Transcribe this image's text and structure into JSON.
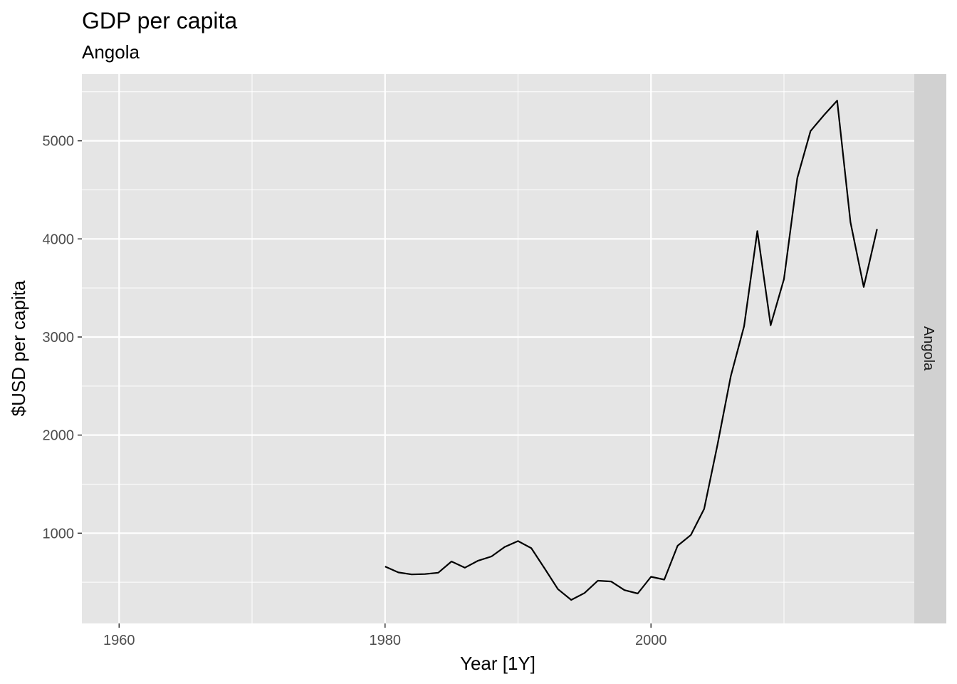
{
  "chart_data": {
    "type": "line",
    "title": "GDP per capita",
    "subtitle": "Angola",
    "xlabel": "Year [1Y]",
    "ylabel": "$USD per capita",
    "facet_label": "Angola",
    "xlim": [
      1957.2,
      2019.8
    ],
    "ylim": [
      80,
      5680
    ],
    "x_ticks": [
      1960,
      1980,
      2000
    ],
    "x_tick_labels": [
      "1960",
      "1980",
      "2000"
    ],
    "y_ticks": [
      1000,
      2000,
      3000,
      4000,
      5000
    ],
    "y_tick_labels": [
      "1000",
      "2000",
      "3000",
      "4000",
      "5000"
    ],
    "grid": true,
    "colors": {
      "panel": "#e5e5e5",
      "grid": "#ffffff",
      "strip": "#d1d1d1",
      "line": "#000000"
    },
    "series": [
      {
        "x": [
          1980,
          1981,
          1982,
          1983,
          1984,
          1985,
          1986,
          1987,
          1988,
          1989,
          1990,
          1991,
          1992,
          1993,
          1994,
          1995,
          1996,
          1997,
          1998,
          1999,
          2000,
          2001,
          2002,
          2003,
          2004,
          2005,
          2006,
          2007,
          2008,
          2009,
          2010,
          2011,
          2012,
          2013,
          2014,
          2015,
          2016,
          2017
        ],
        "values": [
          660,
          600,
          580,
          583,
          597,
          712,
          648,
          720,
          763,
          860,
          920,
          847,
          640,
          430,
          320,
          390,
          516,
          508,
          420,
          385,
          556,
          527,
          872,
          982,
          1248,
          1900,
          2600,
          3110,
          4080,
          3120,
          3590,
          4620,
          5100,
          5260,
          5410,
          4170,
          3510,
          4100
        ]
      }
    ]
  }
}
